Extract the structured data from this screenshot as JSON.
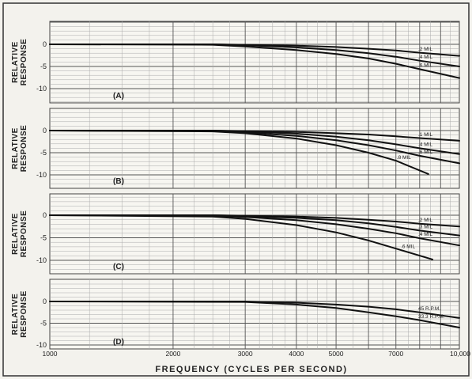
{
  "chart_data": {
    "type": "line",
    "xlabel": "FREQUENCY (CYCLES PER SECOND)",
    "xscale": "log",
    "xlim": [
      1000,
      10000
    ],
    "xticks": [
      {
        "value": 1000,
        "label": "1000"
      },
      {
        "value": 2000,
        "label": "2000"
      },
      {
        "value": 3000,
        "label": "3000"
      },
      {
        "value": 4000,
        "label": "4000"
      },
      {
        "value": 5000,
        "label": "5000"
      },
      {
        "value": 7000,
        "label": "7000"
      },
      {
        "value": 10000,
        "label": "10,000"
      }
    ],
    "ylabel_line1": "RELATIVE",
    "ylabel_line2": "RESPONSE",
    "grid": true,
    "panels": [
      {
        "label": "(A)",
        "ylim": [
          -10,
          5
        ],
        "yticks": [
          "0",
          "-5",
          "-10"
        ],
        "series": [
          {
            "name": ".2 MIL",
            "x": [
              1000,
              2500,
              3000,
              4000,
              5000,
              6000,
              7000,
              8000,
              10000
            ],
            "y": [
              0,
              0,
              -0.1,
              -0.3,
              -0.6,
              -1.0,
              -1.4,
              -1.9,
              -2.6
            ]
          },
          {
            "name": ".4 MIL",
            "x": [
              1000,
              2500,
              3000,
              4000,
              5000,
              6000,
              7000,
              8000,
              10000
            ],
            "y": [
              0,
              0,
              -0.2,
              -0.7,
              -1.3,
              -2.0,
              -2.8,
              -3.7,
              -5.0
            ]
          },
          {
            "name": ".6 MIL",
            "x": [
              1000,
              2500,
              3000,
              4000,
              5000,
              6000,
              7000,
              8000,
              10000
            ],
            "y": [
              0,
              -0.1,
              -0.5,
              -1.3,
              -2.2,
              -3.2,
              -4.4,
              -5.6,
              -7.6
            ]
          }
        ]
      },
      {
        "label": "(B)",
        "ylim": [
          -10,
          5
        ],
        "yticks": [
          "0",
          "-5",
          "-10"
        ],
        "series": [
          {
            "name": ".1 MIL",
            "x": [
              1000,
              2500,
              3000,
              4000,
              5000,
              6000,
              7000,
              8000,
              10000
            ],
            "y": [
              0,
              0,
              -0.1,
              -0.3,
              -0.6,
              -0.9,
              -1.3,
              -1.7,
              -2.3
            ]
          },
          {
            "name": ".4 MIL",
            "x": [
              1000,
              2500,
              3000,
              4000,
              5000,
              6000,
              7000,
              8000,
              10000
            ],
            "y": [
              0,
              0,
              -0.2,
              -0.7,
              -1.4,
              -2.2,
              -3.1,
              -4.0,
              -5.3
            ]
          },
          {
            "name": ".6 MIL",
            "x": [
              1000,
              2500,
              3000,
              4000,
              5000,
              6000,
              7000,
              8000,
              10000
            ],
            "y": [
              0,
              -0.1,
              -0.4,
              -1.2,
              -2.2,
              -3.3,
              -4.5,
              -5.7,
              -7.4
            ]
          },
          {
            "name": ".8 MIL",
            "x": [
              1000,
              2500,
              3000,
              4000,
              5000,
              6000,
              7000,
              8400
            ],
            "y": [
              0,
              -0.2,
              -0.6,
              -1.8,
              -3.3,
              -5.0,
              -6.8,
              -9.8
            ]
          }
        ]
      },
      {
        "label": "(C)",
        "ylim": [
          -10,
          5
        ],
        "yticks": [
          "0",
          "-5",
          "-10"
        ],
        "series": [
          {
            "name": ".2 MIL",
            "x": [
              1000,
              2500,
              3000,
              4000,
              5000,
              6000,
              7000,
              8000,
              10000
            ],
            "y": [
              0,
              0,
              -0.1,
              -0.3,
              -0.6,
              -1.0,
              -1.4,
              -1.9,
              -2.5
            ]
          },
          {
            "name": ".3 MIL",
            "x": [
              1000,
              2500,
              3000,
              4000,
              5000,
              6000,
              7000,
              8000,
              10000
            ],
            "y": [
              0,
              0,
              -0.2,
              -0.6,
              -1.1,
              -1.8,
              -2.6,
              -3.4,
              -4.5
            ]
          },
          {
            "name": ".4 MIL",
            "x": [
              1000,
              2500,
              3000,
              4000,
              5000,
              6000,
              7000,
              8000,
              10000
            ],
            "y": [
              0,
              -0.1,
              -0.4,
              -1.1,
              -2.0,
              -3.0,
              -4.0,
              -5.1,
              -6.7
            ]
          },
          {
            "name": ".6 MIL",
            "x": [
              1000,
              2500,
              3000,
              4000,
              5000,
              6000,
              7000,
              8600
            ],
            "y": [
              0,
              -0.3,
              -0.8,
              -2.2,
              -3.8,
              -5.6,
              -7.4,
              -9.8
            ]
          }
        ]
      },
      {
        "label": "(D)",
        "ylim": [
          -10,
          5
        ],
        "yticks": [
          "0",
          "-5",
          "-10"
        ],
        "series": [
          {
            "name": "45 R.P.M.",
            "x": [
              1000,
              3000,
              4000,
              5000,
              6000,
              7000,
              8000,
              10000
            ],
            "y": [
              0,
              0,
              -0.3,
              -0.7,
              -1.2,
              -1.8,
              -2.5,
              -3.8
            ]
          },
          {
            "name": "33.3 R.P.M.",
            "x": [
              1000,
              3000,
              4000,
              5000,
              6000,
              7000,
              8000,
              10000
            ],
            "y": [
              0,
              -0.1,
              -0.7,
              -1.5,
              -2.5,
              -3.4,
              -4.3,
              -6.0
            ]
          }
        ]
      }
    ]
  }
}
